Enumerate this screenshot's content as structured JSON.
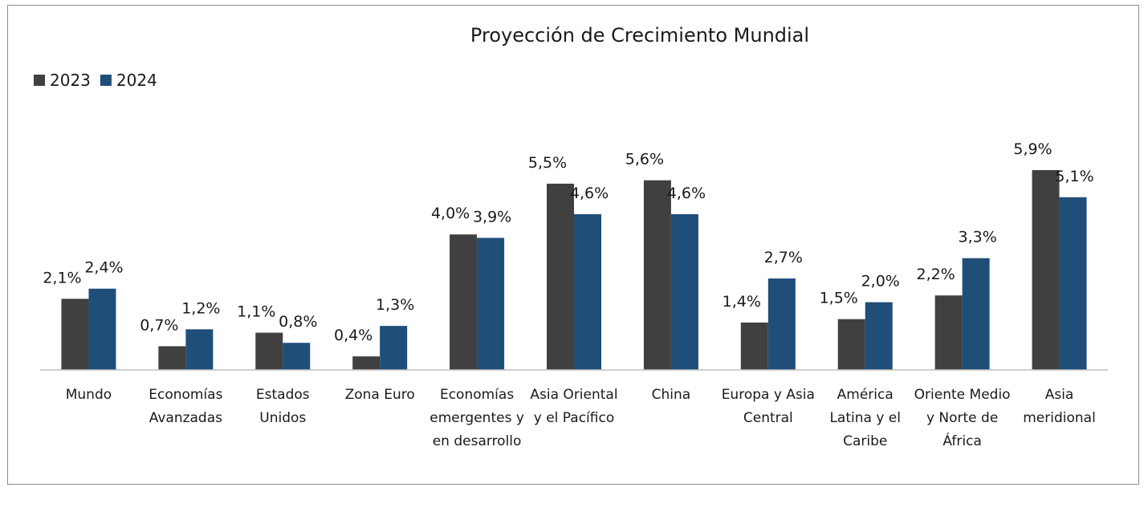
{
  "chart_data": {
    "type": "bar",
    "title": "Proyección de Crecimiento Mundial",
    "categories": [
      "Mundo",
      "Economías Avanzadas",
      "Estados Unidos",
      "Zona Euro",
      "Economías emergentes y en desarrollo",
      "Asia Oriental y el Pacífico",
      "China",
      "Europa y Asia Central",
      "América Latina y el Caribe",
      "Oriente Medio y Norte de África",
      "Asia meridional"
    ],
    "series": [
      {
        "name": "2023",
        "color": "#404040",
        "values": [
          2.1,
          0.7,
          1.1,
          0.4,
          4.0,
          5.5,
          5.6,
          1.4,
          1.5,
          2.2,
          5.9
        ],
        "value_labels": [
          "2,1%",
          "0,7%",
          "1,1%",
          "0,4%",
          "4,0%",
          "5,5%",
          "5,6%",
          "1,4%",
          "1,5%",
          "2,2%",
          "5,9%"
        ]
      },
      {
        "name": "2024",
        "color": "#1f4e79",
        "values": [
          2.4,
          1.2,
          0.8,
          1.3,
          3.9,
          4.6,
          4.6,
          2.7,
          2.0,
          3.3,
          5.1
        ],
        "value_labels": [
          "2,4%",
          "1,2%",
          "0,8%",
          "1,3%",
          "3,9%",
          "4,6%",
          "4,6%",
          "2,7%",
          "2,0%",
          "3,3%",
          "5,1%"
        ]
      }
    ],
    "legend": "top-left"
  }
}
